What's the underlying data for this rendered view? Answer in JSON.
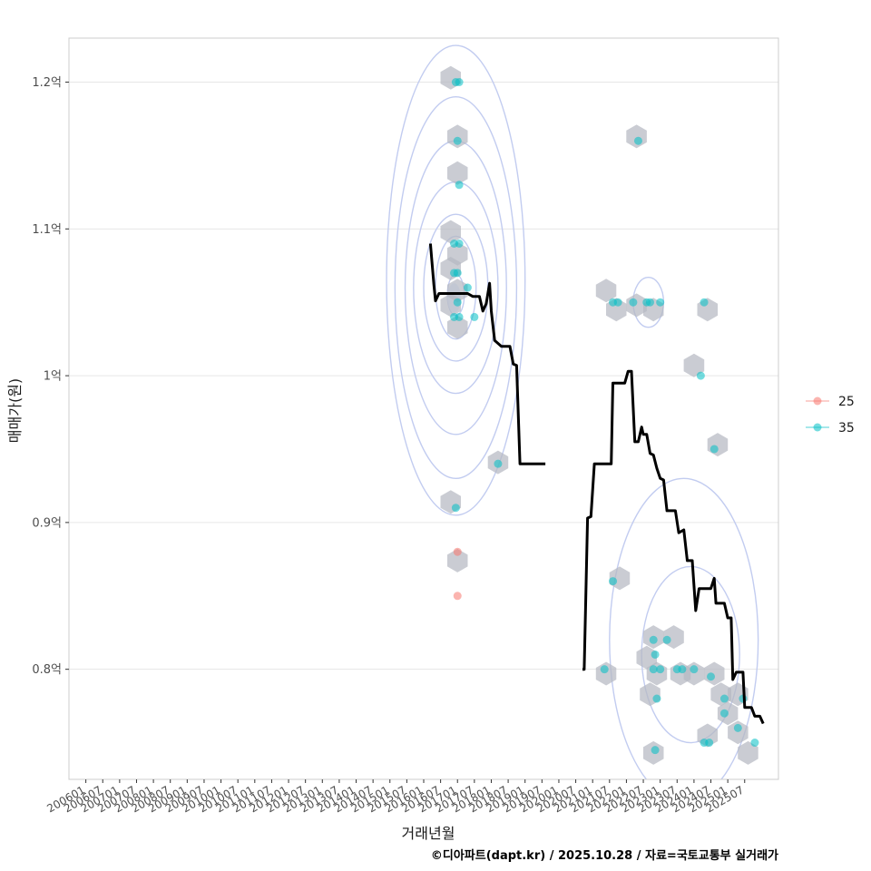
{
  "chart_data": {
    "type": "scatter",
    "xlabel": "거래년월",
    "ylabel": "매매가(원)",
    "caption": "©디아파트(dapt.kr) / 2025.10.28 / 자료=국토교통부 실거래가",
    "xlim": [
      2005.5,
      2026.5
    ],
    "ylim": [
      0.725,
      1.23
    ],
    "x_tick_labels": [
      "200601",
      "200607",
      "200701",
      "200707",
      "200801",
      "200807",
      "200901",
      "200907",
      "201001",
      "201007",
      "201101",
      "201107",
      "201201",
      "201207",
      "201301",
      "201307",
      "201401",
      "201407",
      "201501",
      "201507",
      "201601",
      "201607",
      "201701",
      "201707",
      "201801",
      "201807",
      "201901",
      "201907",
      "202001",
      "202007",
      "202101",
      "202107",
      "202201",
      "202207",
      "202301",
      "202307",
      "202401",
      "202407",
      "202501",
      "202507"
    ],
    "y_ticks": [
      {
        "value": 0.8,
        "label": "0.8억"
      },
      {
        "value": 0.9,
        "label": "0.9억"
      },
      {
        "value": 1.0,
        "label": "1억"
      },
      {
        "value": 1.1,
        "label": "1.1억"
      },
      {
        "value": 1.2,
        "label": "1.2억"
      }
    ],
    "legend": {
      "position": "right",
      "items": [
        {
          "label": "25",
          "color": "#F8766D"
        },
        {
          "label": "35",
          "color": "#00BFC4"
        }
      ]
    },
    "hexbins": [
      [
        2016.8,
        1.203
      ],
      [
        2017.0,
        1.163
      ],
      [
        2017.0,
        1.138
      ],
      [
        2016.8,
        1.098
      ],
      [
        2017.0,
        1.083
      ],
      [
        2016.8,
        1.073
      ],
      [
        2017.0,
        1.058
      ],
      [
        2016.8,
        1.048
      ],
      [
        2017.0,
        1.033
      ],
      [
        2018.2,
        0.941
      ],
      [
        2016.8,
        0.914
      ],
      [
        2017.0,
        0.874
      ],
      [
        2021.4,
        1.058
      ],
      [
        2021.7,
        1.045
      ],
      [
        2022.3,
        1.163
      ],
      [
        2022.3,
        1.048
      ],
      [
        2022.8,
        1.045
      ],
      [
        2024.4,
        1.045
      ],
      [
        2024.0,
        1.007
      ],
      [
        2024.7,
        0.953
      ],
      [
        2021.8,
        0.862
      ],
      [
        2021.4,
        0.797
      ],
      [
        2022.6,
        0.808
      ],
      [
        2022.8,
        0.822
      ],
      [
        2023.4,
        0.822
      ],
      [
        2022.7,
        0.783
      ],
      [
        2022.9,
        0.797
      ],
      [
        2023.6,
        0.797
      ],
      [
        2024.0,
        0.797
      ],
      [
        2024.6,
        0.797
      ],
      [
        2024.8,
        0.783
      ],
      [
        2025.3,
        0.783
      ],
      [
        2024.4,
        0.755
      ],
      [
        2025.3,
        0.757
      ],
      [
        2025.6,
        0.743
      ],
      [
        2022.8,
        0.743
      ],
      [
        2025.0,
        0.77
      ]
    ],
    "series": [
      {
        "name": "25",
        "color": "#F8766D",
        "points": [
          [
            2017.0,
            0.88
          ],
          [
            2017.0,
            0.85
          ]
        ]
      },
      {
        "name": "35",
        "color": "#00BFC4",
        "points": [
          [
            2016.95,
            1.2
          ],
          [
            2017.05,
            1.2
          ],
          [
            2017.0,
            1.16
          ],
          [
            2017.05,
            1.13
          ],
          [
            2016.9,
            1.09
          ],
          [
            2017.05,
            1.09
          ],
          [
            2016.9,
            1.07
          ],
          [
            2017.0,
            1.07
          ],
          [
            2017.3,
            1.06
          ],
          [
            2017.0,
            1.05
          ],
          [
            2016.9,
            1.04
          ],
          [
            2017.05,
            1.04
          ],
          [
            2017.5,
            1.04
          ],
          [
            2018.2,
            0.94
          ],
          [
            2016.95,
            0.91
          ],
          [
            2021.6,
            1.05
          ],
          [
            2021.75,
            1.05
          ],
          [
            2022.2,
            1.05
          ],
          [
            2022.6,
            1.05
          ],
          [
            2022.7,
            1.05
          ],
          [
            2023.0,
            1.05
          ],
          [
            2024.3,
            1.05
          ],
          [
            2022.35,
            1.16
          ],
          [
            2024.2,
            1.0
          ],
          [
            2024.6,
            0.95
          ],
          [
            2021.6,
            0.86
          ],
          [
            2021.35,
            0.8
          ],
          [
            2022.8,
            0.8
          ],
          [
            2022.9,
            0.78
          ],
          [
            2022.8,
            0.82
          ],
          [
            2023.2,
            0.82
          ],
          [
            2023.5,
            0.8
          ],
          [
            2023.65,
            0.8
          ],
          [
            2023.0,
            0.8
          ],
          [
            2024.0,
            0.8
          ],
          [
            2024.5,
            0.795
          ],
          [
            2024.9,
            0.78
          ],
          [
            2024.9,
            0.77
          ],
          [
            2025.3,
            0.76
          ],
          [
            2025.45,
            0.78
          ],
          [
            2025.8,
            0.75
          ],
          [
            2024.3,
            0.75
          ],
          [
            2024.45,
            0.75
          ],
          [
            2022.85,
            0.745
          ],
          [
            2022.85,
            0.81
          ]
        ]
      }
    ],
    "trend_line": {
      "color": "#000000",
      "points": [
        [
          2016.2,
          1.09
        ],
        [
          2016.3,
          1.062
        ],
        [
          2016.35,
          1.051
        ],
        [
          2016.45,
          1.056
        ],
        [
          2016.6,
          1.056
        ],
        [
          2016.8,
          1.056
        ],
        [
          2017.3,
          1.056
        ],
        [
          2017.45,
          1.054
        ],
        [
          2017.65,
          1.054
        ],
        [
          2017.75,
          1.044
        ],
        [
          2017.85,
          1.049
        ],
        [
          2017.95,
          1.063
        ],
        [
          2018.0,
          1.044
        ],
        [
          2018.1,
          1.024
        ],
        [
          2018.3,
          1.02
        ],
        [
          2018.55,
          1.02
        ],
        [
          2018.65,
          1.008
        ],
        [
          2018.75,
          1.007
        ],
        [
          2018.85,
          0.94
        ],
        [
          2019.6,
          0.94
        ],
        [
          2020.7,
          0.8
        ],
        [
          2020.75,
          0.8
        ],
        [
          2020.85,
          0.903
        ],
        [
          2020.95,
          0.904
        ],
        [
          2021.05,
          0.94
        ],
        [
          2021.55,
          0.94
        ],
        [
          2021.6,
          0.995
        ],
        [
          2021.8,
          0.995
        ],
        [
          2021.95,
          0.995
        ],
        [
          2022.05,
          1.003
        ],
        [
          2022.15,
          1.003
        ],
        [
          2022.25,
          0.955
        ],
        [
          2022.35,
          0.955
        ],
        [
          2022.45,
          0.965
        ],
        [
          2022.5,
          0.96
        ],
        [
          2022.6,
          0.96
        ],
        [
          2022.7,
          0.947
        ],
        [
          2022.8,
          0.946
        ],
        [
          2022.9,
          0.937
        ],
        [
          2023.0,
          0.93
        ],
        [
          2023.1,
          0.929
        ],
        [
          2023.2,
          0.908
        ],
        [
          2023.45,
          0.908
        ],
        [
          2023.55,
          0.893
        ],
        [
          2023.7,
          0.895
        ],
        [
          2023.8,
          0.874
        ],
        [
          2023.95,
          0.874
        ],
        [
          2024.05,
          0.84
        ],
        [
          2024.15,
          0.855
        ],
        [
          2024.35,
          0.855
        ],
        [
          2024.5,
          0.855
        ],
        [
          2024.6,
          0.862
        ],
        [
          2024.65,
          0.845
        ],
        [
          2024.9,
          0.845
        ],
        [
          2025.0,
          0.835
        ],
        [
          2025.1,
          0.835
        ],
        [
          2025.15,
          0.793
        ],
        [
          2025.25,
          0.798
        ],
        [
          2025.45,
          0.798
        ],
        [
          2025.5,
          0.774
        ],
        [
          2025.7,
          0.774
        ],
        [
          2025.8,
          0.768
        ],
        [
          2025.95,
          0.768
        ],
        [
          2026.05,
          0.763
        ]
      ]
    },
    "density_contours": [
      {
        "cx": 2016.95,
        "cy": 1.055,
        "rx": 0.25,
        "ry": 0.014
      },
      {
        "cx": 2016.95,
        "cy": 1.06,
        "rx": 0.6,
        "ry": 0.035
      },
      {
        "cx": 2016.95,
        "cy": 1.06,
        "rx": 0.95,
        "ry": 0.05
      },
      {
        "cx": 2016.95,
        "cy": 1.06,
        "rx": 1.25,
        "ry": 0.072
      },
      {
        "cx": 2016.95,
        "cy": 1.06,
        "rx": 1.5,
        "ry": 0.1
      },
      {
        "cx": 2016.95,
        "cy": 1.06,
        "rx": 1.8,
        "ry": 0.13
      },
      {
        "cx": 2016.95,
        "cy": 1.065,
        "rx": 2.05,
        "ry": 0.16
      },
      {
        "cx": 2022.65,
        "cy": 1.05,
        "rx": 0.45,
        "ry": 0.017
      },
      {
        "cx": 2023.9,
        "cy": 0.81,
        "rx": 1.45,
        "ry": 0.06
      },
      {
        "cx": 2023.7,
        "cy": 0.82,
        "rx": 2.2,
        "ry": 0.11
      }
    ]
  }
}
